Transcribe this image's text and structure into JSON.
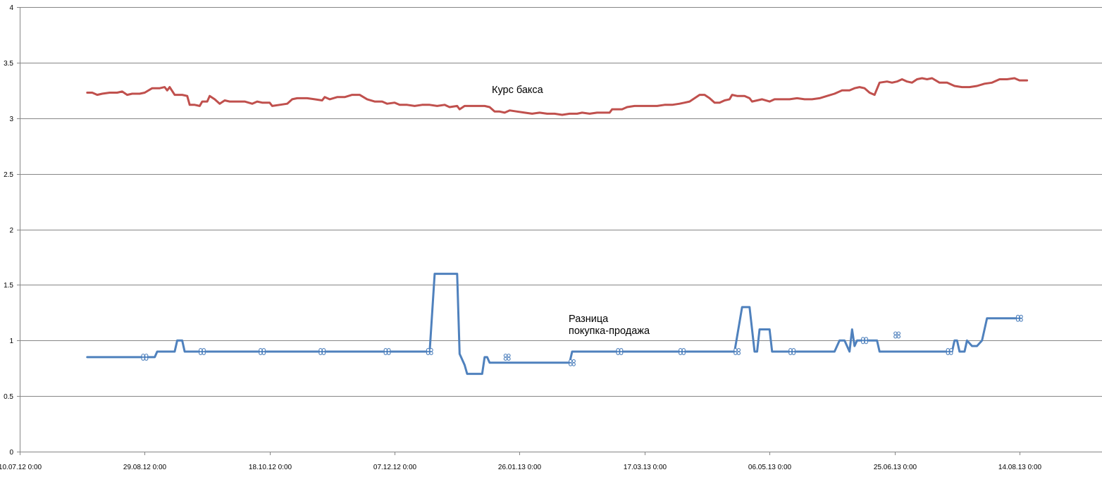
{
  "chart_data": {
    "type": "line",
    "title": "",
    "xlabel": "",
    "ylabel": "",
    "x_range": [
      "2012-07-10",
      "2013-09-16"
    ],
    "ylim": [
      0,
      4
    ],
    "y_ticks": [
      "0",
      "0.5",
      "1",
      "1.5",
      "2",
      "2.5",
      "3",
      "3.5",
      "4"
    ],
    "x_ticks": [
      {
        "date": "2012-07-10",
        "label": "10.07.12 0:00"
      },
      {
        "date": "2012-08-29",
        "label": "29.08.12 0:00"
      },
      {
        "date": "2012-10-18",
        "label": "18.10.12 0:00"
      },
      {
        "date": "2012-12-07",
        "label": "07.12.12 0:00"
      },
      {
        "date": "2013-01-26",
        "label": "26.01.13 0:00"
      },
      {
        "date": "2013-03-17",
        "label": "17.03.13 0:00"
      },
      {
        "date": "2013-05-06",
        "label": "06.05.13 0:00"
      },
      {
        "date": "2013-06-25",
        "label": "25.06.13 0:00"
      },
      {
        "date": "2013-08-14",
        "label": "14.08.13 0:00"
      }
    ],
    "grid": "horizontal",
    "legend": "none",
    "annotations": [
      {
        "text": "Курс бакса",
        "series": "rate"
      },
      {
        "text": "Разница",
        "series": "spread"
      },
      {
        "text": "покупка-продажа",
        "series": "spread"
      }
    ],
    "series": [
      {
        "id": "rate",
        "color": "#c0504d",
        "points": [
          [
            "2012-08-06",
            3.23
          ],
          [
            "2012-08-08",
            3.23
          ],
          [
            "2012-08-10",
            3.21
          ],
          [
            "2012-08-12",
            3.22
          ],
          [
            "2012-08-15",
            3.23
          ],
          [
            "2012-08-18",
            3.23
          ],
          [
            "2012-08-20",
            3.24
          ],
          [
            "2012-08-22",
            3.21
          ],
          [
            "2012-08-24",
            3.22
          ],
          [
            "2012-08-27",
            3.22
          ],
          [
            "2012-08-29",
            3.23
          ],
          [
            "2012-09-01",
            3.27
          ],
          [
            "2012-09-04",
            3.27
          ],
          [
            "2012-09-06",
            3.28
          ],
          [
            "2012-09-07",
            3.25
          ],
          [
            "2012-09-08",
            3.28
          ],
          [
            "2012-09-10",
            3.21
          ],
          [
            "2012-09-13",
            3.21
          ],
          [
            "2012-09-15",
            3.2
          ],
          [
            "2012-09-16",
            3.12
          ],
          [
            "2012-09-18",
            3.12
          ],
          [
            "2012-09-20",
            3.11
          ],
          [
            "2012-09-21",
            3.15
          ],
          [
            "2012-09-23",
            3.15
          ],
          [
            "2012-09-24",
            3.2
          ],
          [
            "2012-09-26",
            3.17
          ],
          [
            "2012-09-28",
            3.13
          ],
          [
            "2012-09-30",
            3.16
          ],
          [
            "2012-10-02",
            3.15
          ],
          [
            "2012-10-05",
            3.15
          ],
          [
            "2012-10-08",
            3.15
          ],
          [
            "2012-10-11",
            3.13
          ],
          [
            "2012-10-13",
            3.15
          ],
          [
            "2012-10-15",
            3.14
          ],
          [
            "2012-10-18",
            3.14
          ],
          [
            "2012-10-19",
            3.11
          ],
          [
            "2012-10-22",
            3.12
          ],
          [
            "2012-10-25",
            3.13
          ],
          [
            "2012-10-27",
            3.17
          ],
          [
            "2012-10-29",
            3.18
          ],
          [
            "2012-11-02",
            3.18
          ],
          [
            "2012-11-05",
            3.17
          ],
          [
            "2012-11-08",
            3.16
          ],
          [
            "2012-11-09",
            3.19
          ],
          [
            "2012-11-11",
            3.17
          ],
          [
            "2012-11-14",
            3.19
          ],
          [
            "2012-11-17",
            3.19
          ],
          [
            "2012-11-20",
            3.21
          ],
          [
            "2012-11-23",
            3.21
          ],
          [
            "2012-11-26",
            3.17
          ],
          [
            "2012-11-29",
            3.15
          ],
          [
            "2012-12-02",
            3.15
          ],
          [
            "2012-12-04",
            3.13
          ],
          [
            "2012-12-07",
            3.14
          ],
          [
            "2012-12-09",
            3.12
          ],
          [
            "2012-12-12",
            3.12
          ],
          [
            "2012-12-15",
            3.11
          ],
          [
            "2012-12-18",
            3.12
          ],
          [
            "2012-12-21",
            3.12
          ],
          [
            "2012-12-24",
            3.11
          ],
          [
            "2012-12-27",
            3.12
          ],
          [
            "2012-12-29",
            3.1
          ],
          [
            "2013-01-01",
            3.11
          ],
          [
            "2013-01-02",
            3.08
          ],
          [
            "2013-01-04",
            3.11
          ],
          [
            "2013-01-08",
            3.11
          ],
          [
            "2013-01-12",
            3.11
          ],
          [
            "2013-01-14",
            3.1
          ],
          [
            "2013-01-16",
            3.06
          ],
          [
            "2013-01-18",
            3.06
          ],
          [
            "2013-01-20",
            3.05
          ],
          [
            "2013-01-22",
            3.07
          ],
          [
            "2013-01-25",
            3.06
          ],
          [
            "2013-01-28",
            3.05
          ],
          [
            "2013-01-31",
            3.04
          ],
          [
            "2013-02-03",
            3.05
          ],
          [
            "2013-02-06",
            3.04
          ],
          [
            "2013-02-09",
            3.04
          ],
          [
            "2013-02-12",
            3.03
          ],
          [
            "2013-02-15",
            3.04
          ],
          [
            "2013-02-18",
            3.04
          ],
          [
            "2013-02-20",
            3.05
          ],
          [
            "2013-02-23",
            3.04
          ],
          [
            "2013-02-26",
            3.05
          ],
          [
            "2013-02-28",
            3.05
          ],
          [
            "2013-03-03",
            3.05
          ],
          [
            "2013-03-04",
            3.08
          ],
          [
            "2013-03-08",
            3.08
          ],
          [
            "2013-03-10",
            3.1
          ],
          [
            "2013-03-13",
            3.11
          ],
          [
            "2013-03-16",
            3.11
          ],
          [
            "2013-03-19",
            3.11
          ],
          [
            "2013-03-22",
            3.11
          ],
          [
            "2013-03-25",
            3.12
          ],
          [
            "2013-03-28",
            3.12
          ],
          [
            "2013-03-31",
            3.13
          ],
          [
            "2013-04-02",
            3.14
          ],
          [
            "2013-04-04",
            3.15
          ],
          [
            "2013-04-06",
            3.18
          ],
          [
            "2013-04-08",
            3.21
          ],
          [
            "2013-04-10",
            3.21
          ],
          [
            "2013-04-12",
            3.18
          ],
          [
            "2013-04-14",
            3.14
          ],
          [
            "2013-04-16",
            3.14
          ],
          [
            "2013-04-18",
            3.16
          ],
          [
            "2013-04-20",
            3.17
          ],
          [
            "2013-04-21",
            3.21
          ],
          [
            "2013-04-23",
            3.2
          ],
          [
            "2013-04-26",
            3.2
          ],
          [
            "2013-04-28",
            3.18
          ],
          [
            "2013-04-29",
            3.15
          ],
          [
            "2013-05-01",
            3.16
          ],
          [
            "2013-05-03",
            3.17
          ],
          [
            "2013-05-06",
            3.15
          ],
          [
            "2013-05-08",
            3.17
          ],
          [
            "2013-05-11",
            3.17
          ],
          [
            "2013-05-14",
            3.17
          ],
          [
            "2013-05-17",
            3.18
          ],
          [
            "2013-05-20",
            3.17
          ],
          [
            "2013-05-23",
            3.17
          ],
          [
            "2013-05-26",
            3.18
          ],
          [
            "2013-05-29",
            3.2
          ],
          [
            "2013-06-01",
            3.22
          ],
          [
            "2013-06-04",
            3.25
          ],
          [
            "2013-06-07",
            3.25
          ],
          [
            "2013-06-09",
            3.27
          ],
          [
            "2013-06-11",
            3.28
          ],
          [
            "2013-06-13",
            3.27
          ],
          [
            "2013-06-15",
            3.23
          ],
          [
            "2013-06-17",
            3.21
          ],
          [
            "2013-06-19",
            3.32
          ],
          [
            "2013-06-22",
            3.33
          ],
          [
            "2013-06-24",
            3.32
          ],
          [
            "2013-06-26",
            3.33
          ],
          [
            "2013-06-28",
            3.35
          ],
          [
            "2013-06-30",
            3.33
          ],
          [
            "2013-07-02",
            3.32
          ],
          [
            "2013-07-04",
            3.35
          ],
          [
            "2013-07-06",
            3.36
          ],
          [
            "2013-07-08",
            3.35
          ],
          [
            "2013-07-10",
            3.36
          ],
          [
            "2013-07-13",
            3.32
          ],
          [
            "2013-07-16",
            3.32
          ],
          [
            "2013-07-19",
            3.29
          ],
          [
            "2013-07-22",
            3.28
          ],
          [
            "2013-07-25",
            3.28
          ],
          [
            "2013-07-28",
            3.29
          ],
          [
            "2013-07-31",
            3.31
          ],
          [
            "2013-08-03",
            3.32
          ],
          [
            "2013-08-06",
            3.35
          ],
          [
            "2013-08-09",
            3.35
          ],
          [
            "2013-08-12",
            3.36
          ],
          [
            "2013-08-14",
            3.34
          ],
          [
            "2013-08-17",
            3.34
          ]
        ]
      },
      {
        "id": "spread",
        "color": "#4f81bd",
        "points": [
          [
            "2012-08-06",
            0.85
          ],
          [
            "2012-08-17",
            0.85
          ],
          [
            "2012-08-29",
            0.85
          ],
          [
            "2012-09-02",
            0.85
          ],
          [
            "2012-09-03",
            0.9
          ],
          [
            "2012-09-10",
            0.9
          ],
          [
            "2012-09-11",
            1.0
          ],
          [
            "2012-09-13",
            1.0
          ],
          [
            "2012-09-14",
            0.9
          ],
          [
            "2012-09-21",
            0.9
          ],
          [
            "2012-10-01",
            0.9
          ],
          [
            "2012-10-15",
            0.9
          ],
          [
            "2012-10-31",
            0.9
          ],
          [
            "2012-11-13",
            0.9
          ],
          [
            "2012-12-02",
            0.9
          ],
          [
            "2012-12-21",
            0.9
          ],
          [
            "2012-12-23",
            1.6
          ],
          [
            "2012-12-31",
            1.6
          ],
          [
            "2013-01-01",
            1.6
          ],
          [
            "2013-01-02",
            0.88
          ],
          [
            "2013-01-04",
            0.78
          ],
          [
            "2013-01-05",
            0.7
          ],
          [
            "2013-01-11",
            0.7
          ],
          [
            "2013-01-12",
            0.85
          ],
          [
            "2013-01-13",
            0.85
          ],
          [
            "2013-01-14",
            0.8
          ],
          [
            "2013-01-24",
            0.8
          ],
          [
            "2013-02-14",
            0.8
          ],
          [
            "2013-02-15",
            0.8
          ],
          [
            "2013-02-16",
            0.9
          ],
          [
            "2013-03-01",
            0.9
          ],
          [
            "2013-03-21",
            0.9
          ],
          [
            "2013-04-07",
            0.9
          ],
          [
            "2013-04-20",
            0.9
          ],
          [
            "2013-04-22",
            0.9
          ],
          [
            "2013-04-25",
            1.3
          ],
          [
            "2013-04-27",
            1.3
          ],
          [
            "2013-04-28",
            1.3
          ],
          [
            "2013-04-30",
            0.9
          ],
          [
            "2013-05-01",
            0.9
          ],
          [
            "2013-05-02",
            1.1
          ],
          [
            "2013-05-05",
            1.1
          ],
          [
            "2013-05-06",
            1.1
          ],
          [
            "2013-05-07",
            0.9
          ],
          [
            "2013-05-15",
            0.9
          ],
          [
            "2013-05-29",
            0.9
          ],
          [
            "2013-06-01",
            0.9
          ],
          [
            "2013-06-03",
            1.0
          ],
          [
            "2013-06-05",
            1.0
          ],
          [
            "2013-06-07",
            0.9
          ],
          [
            "2013-06-08",
            1.1
          ],
          [
            "2013-06-09",
            0.95
          ],
          [
            "2013-06-10",
            1.0
          ],
          [
            "2013-06-17",
            1.0
          ],
          [
            "2013-06-18",
            1.0
          ],
          [
            "2013-06-19",
            0.9
          ],
          [
            "2013-06-29",
            0.9
          ],
          [
            "2013-07-17",
            0.9
          ],
          [
            "2013-07-18",
            0.9
          ],
          [
            "2013-07-19",
            1.0
          ],
          [
            "2013-07-20",
            1.0
          ],
          [
            "2013-07-21",
            0.9
          ],
          [
            "2013-07-23",
            0.9
          ],
          [
            "2013-07-24",
            1.0
          ],
          [
            "2013-07-26",
            0.95
          ],
          [
            "2013-07-28",
            0.95
          ],
          [
            "2013-07-30",
            1.0
          ],
          [
            "2013-08-01",
            1.2
          ],
          [
            "2013-08-10",
            1.2
          ],
          [
            "2013-08-14",
            1.2
          ]
        ],
        "markers": [
          [
            "2012-08-29",
            0.85
          ],
          [
            "2012-09-21",
            0.9
          ],
          [
            "2012-10-15",
            0.9
          ],
          [
            "2012-11-08",
            0.9
          ],
          [
            "2012-12-04",
            0.9
          ],
          [
            "2012-12-21",
            0.9
          ],
          [
            "2013-01-21",
            0.85
          ],
          [
            "2013-02-16",
            0.8
          ],
          [
            "2013-03-07",
            0.9
          ],
          [
            "2013-04-01",
            0.9
          ],
          [
            "2013-04-23",
            0.9
          ],
          [
            "2013-05-15",
            0.9
          ],
          [
            "2013-06-13",
            1.0
          ],
          [
            "2013-06-26",
            1.05
          ],
          [
            "2013-07-17",
            0.9
          ],
          [
            "2013-08-14",
            1.2
          ]
        ]
      }
    ]
  }
}
